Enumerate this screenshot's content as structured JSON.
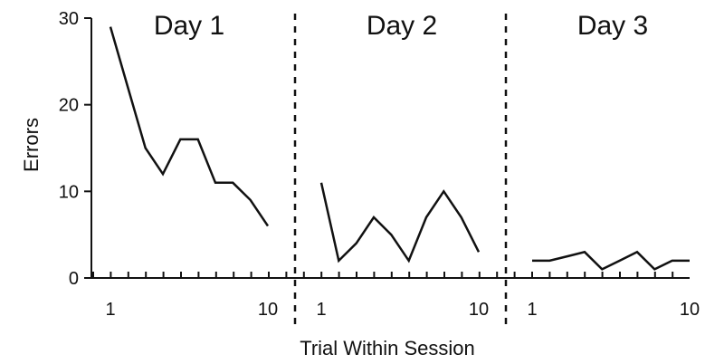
{
  "chart_data": {
    "type": "line",
    "xlabel": "Trial Within Session",
    "ylabel": "Errors",
    "ylim": [
      0,
      30
    ],
    "yticks": [
      0,
      10,
      20,
      30
    ],
    "x_tick_labels": [
      "1",
      "10"
    ],
    "grid": false,
    "legend": "none",
    "panels": [
      {
        "title": "Day 1",
        "x": [
          1,
          2,
          3,
          4,
          5,
          6,
          7,
          8,
          9,
          10
        ],
        "values": [
          29,
          22,
          15,
          12,
          16,
          16,
          11,
          11,
          9,
          6
        ]
      },
      {
        "title": "Day 2",
        "x": [
          1,
          2,
          3,
          4,
          5,
          6,
          7,
          8,
          9,
          10
        ],
        "values": [
          11,
          2,
          4,
          7,
          5,
          2,
          7,
          10,
          7,
          3
        ]
      },
      {
        "title": "Day 3",
        "x": [
          1,
          2,
          3,
          4,
          5,
          6,
          7,
          8,
          9,
          10
        ],
        "values": [
          2,
          2,
          2.5,
          3,
          1,
          2,
          3,
          1,
          2,
          2
        ]
      }
    ],
    "line_color": "#111111"
  }
}
